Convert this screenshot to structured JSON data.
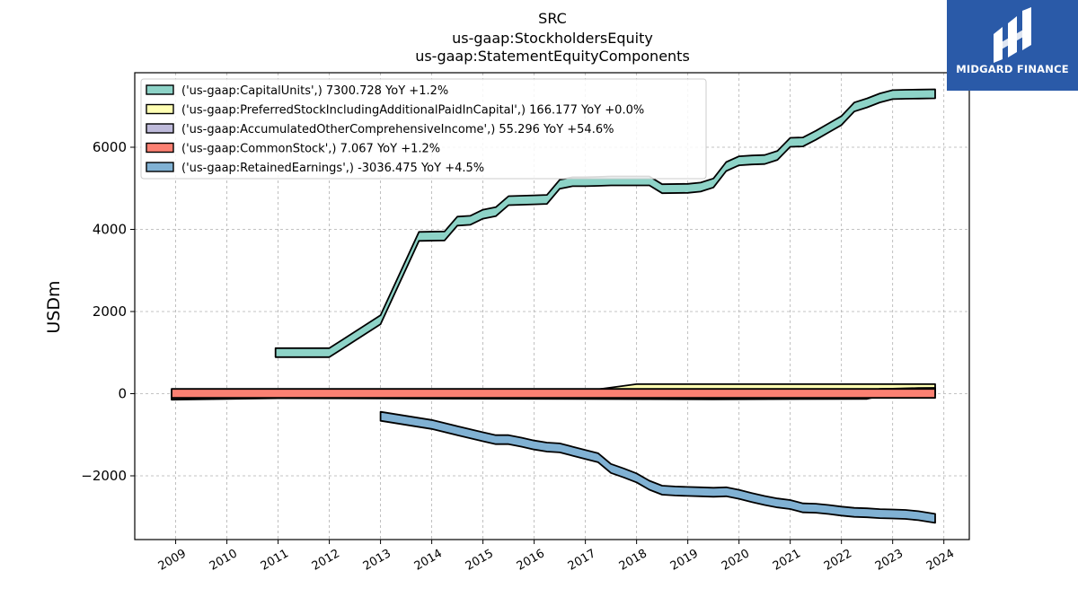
{
  "logo": {
    "text": "MIDGARD FINANCE"
  },
  "chart_data": {
    "type": "area",
    "title": [
      "SRC",
      "us-gaap:StockholdersEquity",
      "us-gaap:StatementEquityComponents"
    ],
    "xlabel": "",
    "ylabel": "USDm",
    "xlim": [
      2008.73,
      2024.45
    ],
    "ylim": [
      -3500,
      7850
    ],
    "x_ticks": [
      "2009",
      "2010",
      "2011",
      "2012",
      "2013",
      "2014",
      "2015",
      "2016",
      "2017",
      "2018",
      "2019",
      "2020",
      "2021",
      "2022",
      "2023",
      "2024"
    ],
    "y_ticks": [
      -2000,
      0,
      2000,
      4000,
      6000
    ],
    "y_tick_labels": [
      "−2000",
      "0",
      "2000",
      "4000",
      "6000"
    ],
    "grid": true,
    "legend_position": "top-left",
    "colors": {
      "capital_units": "#8dd3c7",
      "preferred": "#ffffb3",
      "aoci": "#bebada",
      "common": "#fb8072",
      "retained": "#80b1d3",
      "outline": "#000000"
    },
    "series": [
      {
        "name": "('us-gaap:CapitalUnits',) 7300.728 YoY +1.2%",
        "x": [
          2010.95,
          2012.0,
          2013.0,
          2013.75,
          2014.25,
          2014.5,
          2014.75,
          2015.0,
          2015.25,
          2015.5,
          2016.0,
          2016.25,
          2016.5,
          2016.75,
          2017.0,
          2017.25,
          2017.5,
          2017.75,
          2018.0,
          2018.25,
          2018.5,
          2019.0,
          2019.25,
          2019.5,
          2019.75,
          2020.0,
          2020.25,
          2020.5,
          2020.75,
          2021.0,
          2021.25,
          2021.5,
          2021.75,
          2022.0,
          2022.25,
          2022.5,
          2022.75,
          2023.0,
          2023.25,
          2023.5,
          2023.83
        ],
        "values": [
          1000,
          1000,
          1800,
          3830,
          3840,
          4200,
          4220,
          4370,
          4430,
          4700,
          4720,
          4730,
          5100,
          5160,
          5160,
          5170,
          5180,
          5180,
          5180,
          5180,
          4990,
          5000,
          5030,
          5130,
          5530,
          5670,
          5690,
          5700,
          5800,
          6120,
          6130,
          6290,
          6470,
          6650,
          6980,
          7080,
          7200,
          7280,
          7290,
          7295,
          7300
        ]
      },
      {
        "name": "('us-gaap:PreferredStockIncludingAdditionalPaidInCapital',) 166.177 YoY +0.0%",
        "x": [
          2017.0,
          2018.0,
          2023.83
        ],
        "values": [
          0,
          166,
          166
        ]
      },
      {
        "name": "('us-gaap:AccumulatedOtherComprehensiveIncome',) 55.296 YoY +54.6%",
        "x": [
          2008.92,
          2011.0,
          2019.5,
          2022.5,
          2022.75,
          2023.0,
          2023.5,
          2023.83
        ],
        "values": [
          -60,
          -25,
          -50,
          -40,
          30,
          35,
          50,
          55
        ]
      },
      {
        "name": "('us-gaap:CommonStock',) 7.067 YoY +1.2%",
        "x": [
          2008.92,
          2023.83
        ],
        "values": [
          7,
          7
        ]
      },
      {
        "name": "('us-gaap:RetainedEarnings',) -3036.475 YoY +4.5%",
        "x": [
          2013.0,
          2014.0,
          2014.5,
          2015.0,
          2015.25,
          2015.5,
          2015.75,
          2016.0,
          2016.25,
          2016.5,
          2016.75,
          2017.0,
          2017.25,
          2017.5,
          2017.75,
          2018.0,
          2018.25,
          2018.5,
          2018.75,
          2019.0,
          2019.25,
          2019.5,
          2019.75,
          2020.0,
          2020.25,
          2020.5,
          2020.75,
          2021.0,
          2021.25,
          2021.5,
          2021.75,
          2022.0,
          2022.25,
          2022.5,
          2022.75,
          2023.0,
          2023.25,
          2023.5,
          2023.83
        ],
        "values": [
          -550,
          -750,
          -900,
          -1050,
          -1120,
          -1120,
          -1180,
          -1250,
          -1300,
          -1320,
          -1400,
          -1480,
          -1560,
          -1820,
          -1930,
          -2050,
          -2230,
          -2350,
          -2370,
          -2380,
          -2390,
          -2400,
          -2390,
          -2450,
          -2530,
          -2600,
          -2660,
          -2700,
          -2780,
          -2790,
          -2820,
          -2860,
          -2890,
          -2900,
          -2920,
          -2930,
          -2940,
          -2970,
          -3036
        ]
      }
    ]
  }
}
